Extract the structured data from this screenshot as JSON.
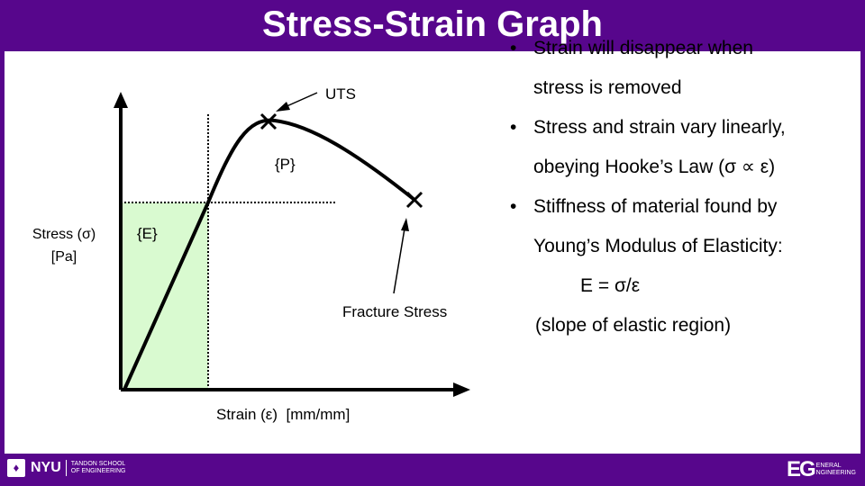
{
  "title": "Stress-Strain Graph",
  "diagram": {
    "y_label_line1": "Stress (σ)",
    "y_label_line2": "[Pa]",
    "x_label": "Strain (ε)  [mm/mm]",
    "uts_label": "UTS",
    "plastic_label": "{P}",
    "elastic_label": "{E}",
    "fracture_label": "Fracture Stress",
    "colors": {
      "elastic_region": "#d9fad0",
      "curve": "#000000",
      "slide_frame": "#57068c"
    }
  },
  "bullets": [
    {
      "line1": "Strain will disappear when",
      "line2": "stress is removed"
    },
    {
      "line1": "Stress and strain vary linearly,",
      "line2": "obeying Hooke’s Law (σ ∝ ε)"
    },
    {
      "line1": "Stiffness of material found by",
      "line2": "Young’s Modulus of Elasticity:"
    }
  ],
  "equation": "E = σ/ε",
  "note": "(slope of elastic region)",
  "footer": {
    "nyu": "NYU",
    "school_line1": "TANDON SCHOOL",
    "school_line2": "OF ENGINEERING",
    "eg": "EG",
    "eg_line1": "ENERAL",
    "eg_line2": "NGINEERING"
  }
}
